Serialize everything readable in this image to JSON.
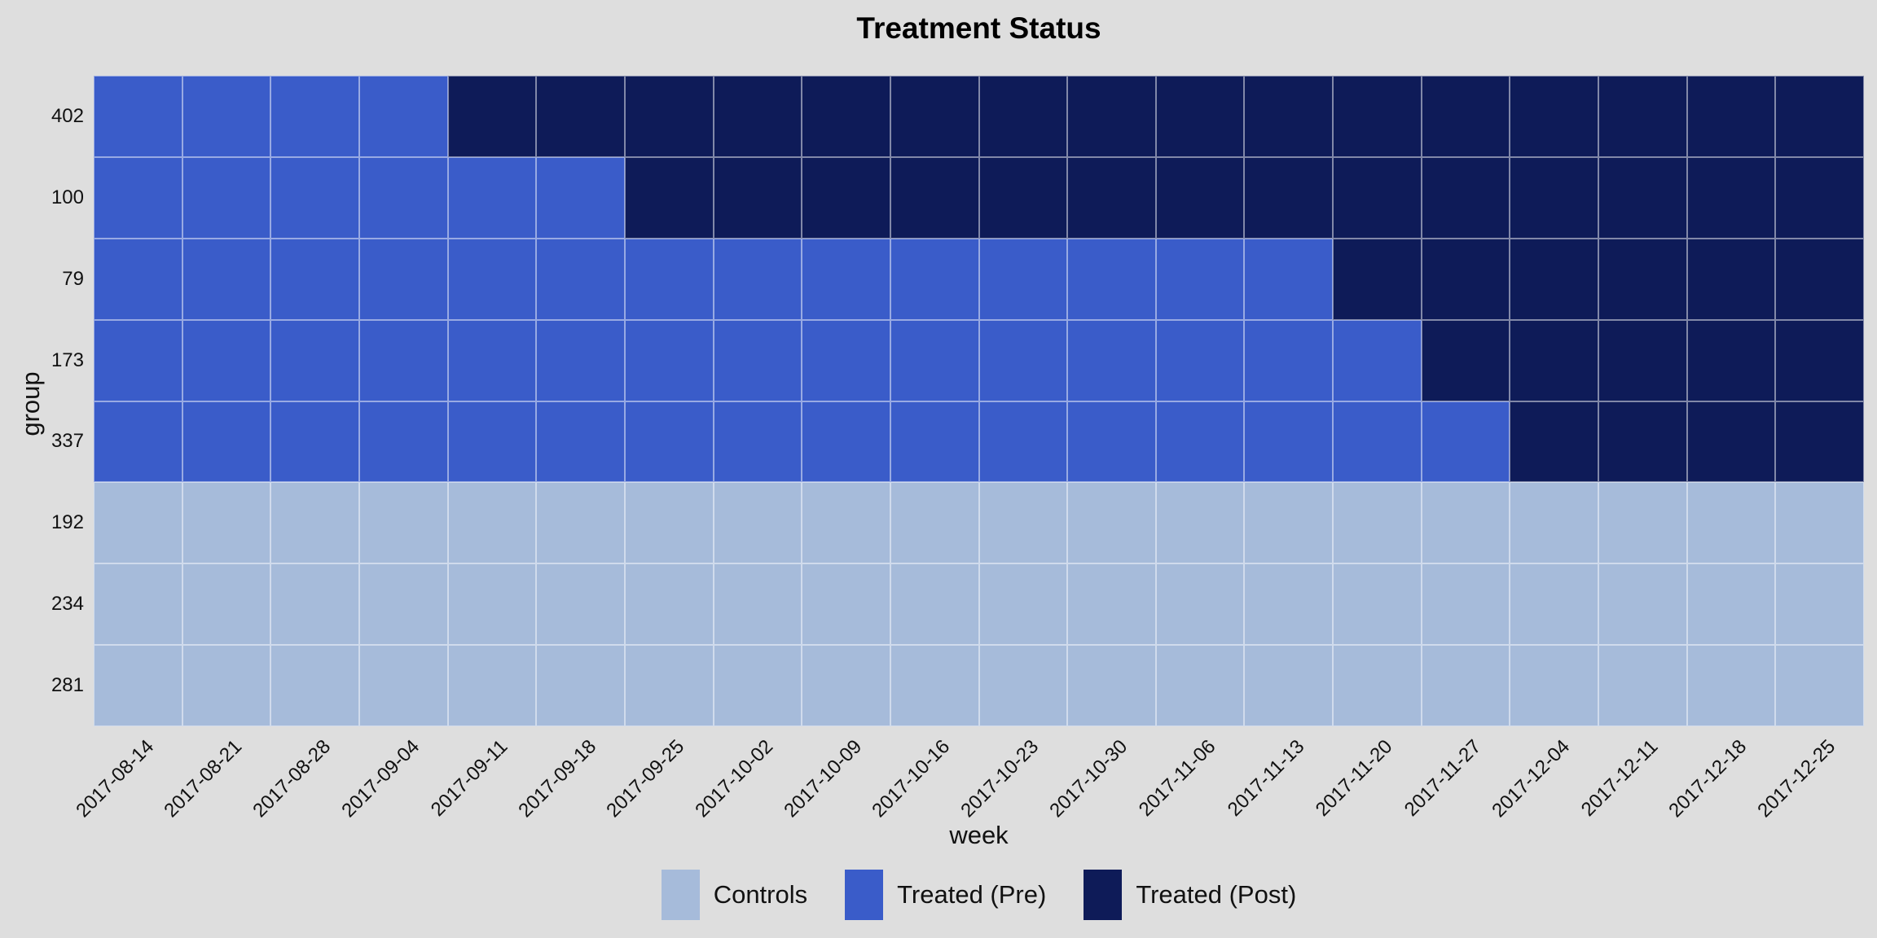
{
  "title": "Treatment Status",
  "colors": {
    "background": "#DEDEDE",
    "gridline": "rgba(255,255,255,0.48)",
    "control": "#A6BBDA",
    "pre": "#3A5CC9",
    "post": "#0E1B58",
    "text": "#111111"
  },
  "legend": [
    {
      "label": "Controls",
      "status": "control"
    },
    {
      "label": "Treated (Pre)",
      "status": "pre"
    },
    {
      "label": "Treated (Post)",
      "status": "post"
    }
  ],
  "chart_data": {
    "type": "heatmap",
    "title": "Treatment Status",
    "xlabel": "week",
    "ylabel": "group",
    "legend_position": "bottom",
    "grid": "white-cell-borders",
    "x": [
      "2017-08-14",
      "2017-08-21",
      "2017-08-28",
      "2017-09-04",
      "2017-09-11",
      "2017-09-18",
      "2017-09-25",
      "2017-10-02",
      "2017-10-09",
      "2017-10-16",
      "2017-10-23",
      "2017-10-30",
      "2017-11-06",
      "2017-11-13",
      "2017-11-20",
      "2017-11-27",
      "2017-12-04",
      "2017-12-11",
      "2017-12-18",
      "2017-12-25"
    ],
    "y": [
      "402",
      "100",
      "79",
      "173",
      "337",
      "192",
      "234",
      "281"
    ],
    "rows": [
      {
        "group": "402",
        "first_post_week": "2017-09-11",
        "statuses": [
          "pre",
          "pre",
          "pre",
          "pre",
          "post",
          "post",
          "post",
          "post",
          "post",
          "post",
          "post",
          "post",
          "post",
          "post",
          "post",
          "post",
          "post",
          "post",
          "post",
          "post"
        ]
      },
      {
        "group": "100",
        "first_post_week": "2017-09-25",
        "statuses": [
          "pre",
          "pre",
          "pre",
          "pre",
          "pre",
          "pre",
          "post",
          "post",
          "post",
          "post",
          "post",
          "post",
          "post",
          "post",
          "post",
          "post",
          "post",
          "post",
          "post",
          "post"
        ]
      },
      {
        "group": "79",
        "first_post_week": "2017-11-20",
        "statuses": [
          "pre",
          "pre",
          "pre",
          "pre",
          "pre",
          "pre",
          "pre",
          "pre",
          "pre",
          "pre",
          "pre",
          "pre",
          "pre",
          "pre",
          "post",
          "post",
          "post",
          "post",
          "post",
          "post"
        ]
      },
      {
        "group": "173",
        "first_post_week": "2017-11-27",
        "statuses": [
          "pre",
          "pre",
          "pre",
          "pre",
          "pre",
          "pre",
          "pre",
          "pre",
          "pre",
          "pre",
          "pre",
          "pre",
          "pre",
          "pre",
          "pre",
          "post",
          "post",
          "post",
          "post",
          "post"
        ]
      },
      {
        "group": "337",
        "first_post_week": "2017-12-04",
        "statuses": [
          "pre",
          "pre",
          "pre",
          "pre",
          "pre",
          "pre",
          "pre",
          "pre",
          "pre",
          "pre",
          "pre",
          "pre",
          "pre",
          "pre",
          "pre",
          "pre",
          "post",
          "post",
          "post",
          "post"
        ]
      },
      {
        "group": "192",
        "first_post_week": null,
        "statuses": [
          "control",
          "control",
          "control",
          "control",
          "control",
          "control",
          "control",
          "control",
          "control",
          "control",
          "control",
          "control",
          "control",
          "control",
          "control",
          "control",
          "control",
          "control",
          "control",
          "control"
        ]
      },
      {
        "group": "234",
        "first_post_week": null,
        "statuses": [
          "control",
          "control",
          "control",
          "control",
          "control",
          "control",
          "control",
          "control",
          "control",
          "control",
          "control",
          "control",
          "control",
          "control",
          "control",
          "control",
          "control",
          "control",
          "control",
          "control"
        ]
      },
      {
        "group": "281",
        "first_post_week": null,
        "statuses": [
          "control",
          "control",
          "control",
          "control",
          "control",
          "control",
          "control",
          "control",
          "control",
          "control",
          "control",
          "control",
          "control",
          "control",
          "control",
          "control",
          "control",
          "control",
          "control",
          "control"
        ]
      }
    ]
  }
}
